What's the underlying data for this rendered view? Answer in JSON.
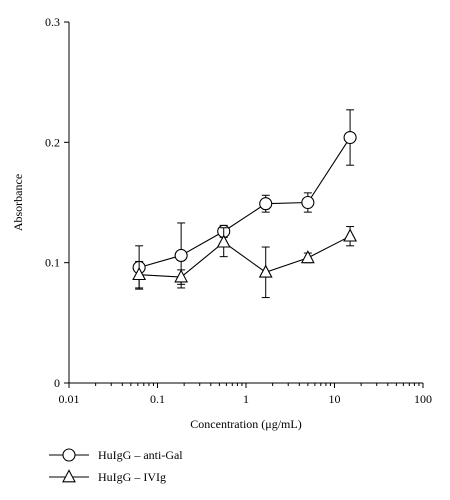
{
  "chart_data": {
    "type": "line",
    "xlabel": "Concentration (μg/mL)",
    "ylabel": "Absorbance",
    "xscale": "log",
    "xlim": [
      0.01,
      100
    ],
    "ylim": [
      0,
      0.3
    ],
    "x_ticks": [
      {
        "value": 0.01,
        "label": "0.01"
      },
      {
        "value": 0.1,
        "label": "0.1"
      },
      {
        "value": 1,
        "label": "1"
      },
      {
        "value": 10,
        "label": "10"
      },
      {
        "value": 100,
        "label": "100"
      }
    ],
    "y_ticks": [
      {
        "value": 0,
        "label": "0"
      },
      {
        "value": 0.1,
        "label": "0.1"
      },
      {
        "value": 0.2,
        "label": "0.2"
      },
      {
        "value": 0.3,
        "label": "0.3"
      }
    ],
    "grid": false,
    "legend_position": "bottom-left",
    "series": [
      {
        "name": "HuIgG – anti-Gal",
        "marker": "circle",
        "x": [
          0.062,
          0.185,
          0.56,
          1.67,
          5.0,
          15.0
        ],
        "y": [
          0.096,
          0.106,
          0.126,
          0.149,
          0.15,
          0.204
        ],
        "err": [
          0.018,
          0.027,
          0.005,
          0.007,
          0.008,
          0.023
        ]
      },
      {
        "name": "HuIgG – IVIg",
        "marker": "triangle",
        "x": [
          0.062,
          0.185,
          0.56,
          1.67,
          5.0,
          15.0
        ],
        "y": [
          0.09,
          0.088,
          0.117,
          0.092,
          0.104,
          0.122
        ],
        "err": [
          0.011,
          0.006,
          0.012,
          0.021,
          0.004,
          0.008
        ]
      }
    ]
  }
}
